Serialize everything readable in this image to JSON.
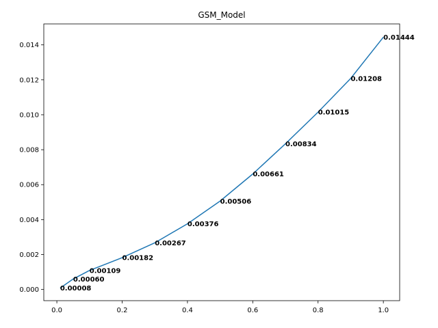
{
  "chart_data": {
    "type": "line",
    "title": "GSM_Model",
    "xlabel": "",
    "ylabel": "",
    "xlim": [
      -0.04,
      1.05
    ],
    "ylim": [
      -0.00064,
      0.0152
    ],
    "xticks": [
      0.0,
      0.2,
      0.4,
      0.6,
      0.8,
      1.0
    ],
    "xtick_labels": [
      "0.0",
      "0.2",
      "0.4",
      "0.6",
      "0.8",
      "1.0"
    ],
    "yticks": [
      0.0,
      0.002,
      0.004,
      0.006,
      0.008,
      0.01,
      0.012,
      0.014
    ],
    "ytick_labels": [
      "0.000",
      "0.002",
      "0.004",
      "0.006",
      "0.008",
      "0.010",
      "0.012",
      "0.014"
    ],
    "grid": false,
    "line_color": "#1f77b4",
    "series": [
      {
        "x": [
          0.01,
          0.05,
          0.1,
          0.2,
          0.3,
          0.4,
          0.5,
          0.6,
          0.7,
          0.8,
          0.9,
          1.0
        ],
        "y": [
          8e-05,
          0.0006,
          0.00109,
          0.00182,
          0.00267,
          0.00376,
          0.00506,
          0.00661,
          0.00834,
          0.01015,
          0.01208,
          0.01444
        ],
        "labels": [
          "0.00008",
          "0.00060",
          "0.00109",
          "0.00182",
          "0.00267",
          "0.00376",
          "0.00506",
          "0.00661",
          "0.00834",
          "0.01015",
          "0.01208",
          "0.01444"
        ]
      }
    ]
  }
}
